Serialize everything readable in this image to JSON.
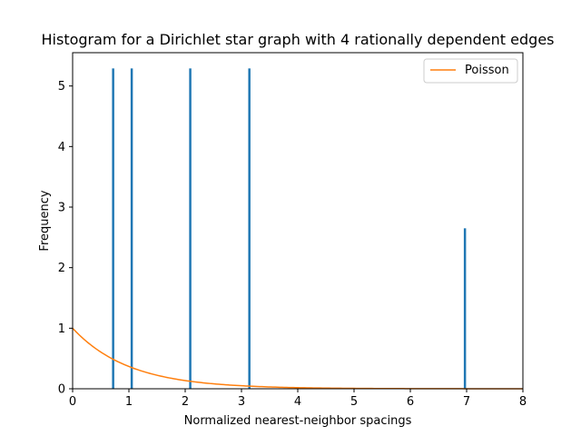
{
  "chart_data": {
    "type": "bar",
    "title": "Histogram for a Dirichlet star graph with 4 rationally dependent edges",
    "xlabel": "Normalized nearest-neighbor spacings",
    "ylabel": "Frequency",
    "xlim": [
      0,
      8
    ],
    "ylim": [
      0,
      5.55
    ],
    "xticks": [
      "0",
      "1",
      "2",
      "3",
      "4",
      "5",
      "6",
      "7",
      "8"
    ],
    "yticks": [
      "0",
      "1",
      "2",
      "3",
      "4",
      "5"
    ],
    "grid": false,
    "legend": {
      "position": "top-right",
      "entries": [
        "Poisson"
      ]
    },
    "histogram": {
      "color": "#1f77b4",
      "bin_width": 0.04,
      "bars": [
        {
          "x": 0.72,
          "value": 5.29
        },
        {
          "x": 1.05,
          "value": 5.29
        },
        {
          "x": 2.09,
          "value": 5.29
        },
        {
          "x": 3.14,
          "value": 5.29
        },
        {
          "x": 6.97,
          "value": 2.65
        }
      ]
    },
    "series": [
      {
        "name": "Poisson",
        "type": "line",
        "color": "#ff7f0e",
        "function": "exp(-x)",
        "x_range": [
          0,
          8
        ]
      }
    ]
  }
}
